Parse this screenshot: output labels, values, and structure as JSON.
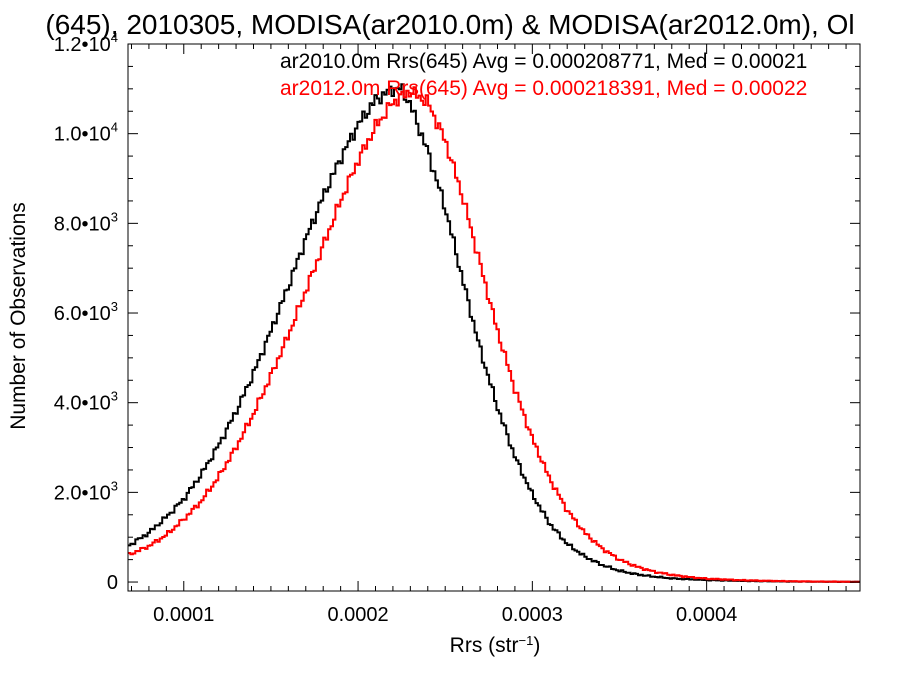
{
  "chart_data": {
    "type": "line",
    "title": "(645), 2010305, MODISA(ar2010.0m) & MODISA(ar2012.0m), Ol",
    "xlabel": "Rrs (str",
    "xlabel_sup": "−1",
    "xlabel_close": ")",
    "ylabel": "Number of Observations",
    "xlim": [
      6.8e-05,
      0.000488
    ],
    "ylim": [
      -200,
      12000
    ],
    "x_ticks": [
      {
        "value": 0.0001,
        "label": "0.0001"
      },
      {
        "value": 0.0002,
        "label": "0.0002"
      },
      {
        "value": 0.0003,
        "label": "0.0003"
      },
      {
        "value": 0.0004,
        "label": "0.0004"
      }
    ],
    "y_ticks": [
      {
        "value": 0,
        "base": "0",
        "exp": ""
      },
      {
        "value": 2000,
        "base": "2.0•10",
        "exp": "3"
      },
      {
        "value": 4000,
        "base": "4.0•10",
        "exp": "3"
      },
      {
        "value": 6000,
        "base": "6.0•10",
        "exp": "3"
      },
      {
        "value": 8000,
        "base": "8.0•10",
        "exp": "3"
      },
      {
        "value": 10000,
        "base": "1.0•10",
        "exp": "4"
      },
      {
        "value": 12000,
        "base": "1.2•10",
        "exp": "4"
      }
    ],
    "legend": {
      "placement": "top-right",
      "entries": [
        {
          "text": "ar2010.0m Rrs(645) Avg = 0.000208771, Med = 0.00021",
          "color": "#000000"
        },
        {
          "text": "ar2012.0m Rrs(645) Avg = 0.000218391, Med = 0.00022",
          "color": "#ff0000"
        }
      ]
    },
    "series": [
      {
        "color": "#000000",
        "x": [
          6.8e-05,
          8e-05,
          9e-05,
          0.0001,
          0.00011,
          0.00012,
          0.00013,
          0.00014,
          0.00015,
          0.00016,
          0.00017,
          0.00018,
          0.00019,
          0.0002,
          0.00021,
          0.00022,
          0.000225,
          0.00023,
          0.00024,
          0.00025,
          0.00026,
          0.00027,
          0.00028,
          0.00029,
          0.0003,
          0.00031,
          0.00032,
          0.00033,
          0.00034,
          0.00035,
          0.00036,
          0.00037,
          0.00038,
          0.0004,
          0.00042,
          0.00045,
          0.000488
        ],
        "y": [
          800,
          1100,
          1450,
          1850,
          2400,
          3050,
          3800,
          4650,
          5600,
          6600,
          7650,
          8600,
          9450,
          10200,
          10750,
          11000,
          11000,
          10650,
          9600,
          8350,
          6750,
          5200,
          3900,
          2800,
          1950,
          1300,
          850,
          570,
          380,
          250,
          170,
          120,
          80,
          45,
          25,
          10,
          3
        ]
      },
      {
        "color": "#ff0000",
        "x": [
          6.8e-05,
          8e-05,
          9e-05,
          0.0001,
          0.00011,
          0.00012,
          0.00013,
          0.00014,
          0.00015,
          0.00016,
          0.00017,
          0.00018,
          0.00019,
          0.0002,
          0.00021,
          0.00022,
          0.00023,
          0.00024,
          0.00025,
          0.00026,
          0.00027,
          0.00028,
          0.00029,
          0.0003,
          0.00031,
          0.00032,
          0.00033,
          0.00034,
          0.00035,
          0.00036,
          0.00037,
          0.00038,
          0.00039,
          0.0004,
          0.00042,
          0.00045,
          0.000488
        ],
        "y": [
          600,
          800,
          1050,
          1400,
          1800,
          2350,
          3000,
          3750,
          4600,
          5500,
          6500,
          7500,
          8500,
          9400,
          10150,
          10700,
          10950,
          10700,
          9850,
          8600,
          7100,
          5600,
          4300,
          3200,
          2300,
          1600,
          1100,
          750,
          500,
          340,
          230,
          160,
          110,
          75,
          40,
          15,
          5
        ]
      }
    ]
  }
}
